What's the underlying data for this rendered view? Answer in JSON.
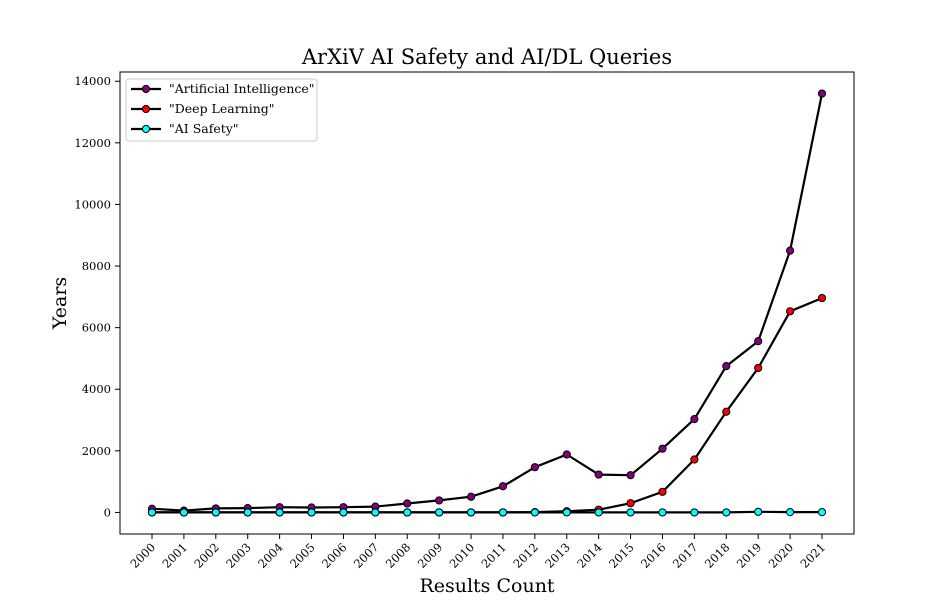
{
  "chart_data": {
    "type": "line",
    "title": "ArXiV AI Safety and AI/DL Queries",
    "xlabel": "Results Count",
    "ylabel": "Years",
    "categories": [
      "2000",
      "2001",
      "2002",
      "2003",
      "2004",
      "2005",
      "2006",
      "2007",
      "2008",
      "2009",
      "2010",
      "2011",
      "2012",
      "2013",
      "2014",
      "2015",
      "2016",
      "2017",
      "2018",
      "2019",
      "2020",
      "2021"
    ],
    "yticks": [
      0,
      2000,
      4000,
      6000,
      8000,
      10000,
      12000,
      14000
    ],
    "ylim": [
      -700,
      14300
    ],
    "grid": false,
    "legend_position": "top-left",
    "line_color": "#000000",
    "series": [
      {
        "name": "\"Artificial Intelligence\"",
        "marker_color": "#800080",
        "values": [
          120,
          60,
          130,
          140,
          170,
          160,
          170,
          190,
          290,
          390,
          510,
          850,
          1470,
          1880,
          1230,
          1210,
          2070,
          3030,
          4750,
          5560,
          8500,
          13600
        ]
      },
      {
        "name": "\"Deep Learning\"",
        "marker_color": "#ff0000",
        "values": [
          0,
          0,
          0,
          0,
          0,
          0,
          0,
          0,
          0,
          0,
          0,
          0,
          10,
          40,
          90,
          300,
          670,
          1720,
          3270,
          4690,
          6530,
          6960
        ]
      },
      {
        "name": "\"AI Safety\"",
        "marker_color": "#00ffff",
        "values": [
          0,
          0,
          0,
          0,
          0,
          0,
          0,
          0,
          0,
          0,
          0,
          0,
          0,
          0,
          0,
          0,
          0,
          0,
          0,
          20,
          10,
          10
        ]
      }
    ]
  }
}
